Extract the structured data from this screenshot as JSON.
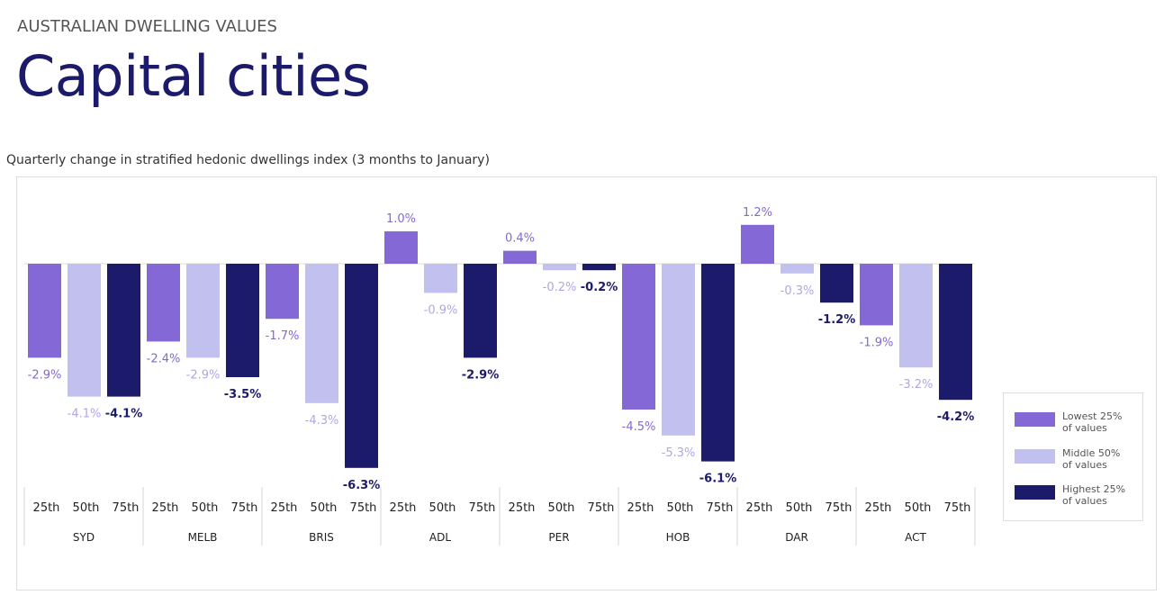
{
  "header": {
    "eyebrow": "AUSTRALIAN DWELLING VALUES",
    "title": "Capital cities"
  },
  "chart_data": {
    "type": "bar",
    "title": "Quarterly change in stratified hedonic dwellings index (3 months to January)",
    "categories": [
      "SYD",
      "MELB",
      "BRIS",
      "ADL",
      "PER",
      "HOB",
      "DAR",
      "ACT"
    ],
    "subcategories": [
      "25th",
      "50th",
      "75th"
    ],
    "series": [
      {
        "name": "Lowest 25% of values",
        "color": "#8468d6",
        "label_color": "#8468d6",
        "values": [
          -2.9,
          -2.4,
          -1.7,
          1.0,
          0.4,
          -4.5,
          1.2,
          -1.9
        ],
        "labels": [
          "-2.9%",
          "-2.4%",
          "-1.7%",
          "1.0%",
          "0.4%",
          "-4.5%",
          "1.2%",
          "-1.9%"
        ]
      },
      {
        "name": "Middle 50% of values",
        "color": "#c2c0ee",
        "label_color": "#b0a6e6",
        "values": [
          -4.1,
          -2.9,
          -4.3,
          -0.9,
          -0.2,
          -5.3,
          -0.3,
          -3.2
        ],
        "labels": [
          "-4.1%",
          "-2.9%",
          "-4.3%",
          "-0.9%",
          "-0.2%",
          "-5.3%",
          "-0.3%",
          "-3.2%"
        ]
      },
      {
        "name": "Highest 25% of values",
        "color": "#1b1a6b",
        "label_color": "#1b1a6b",
        "values": [
          -4.1,
          -3.5,
          -6.3,
          -2.9,
          -0.2,
          -6.1,
          -1.2,
          -4.2
        ],
        "labels": [
          "-4.1%",
          "-3.5%",
          "-6.3%",
          "-2.9%",
          "-0.2%",
          "-6.1%",
          "-1.2%",
          "-4.2%"
        ]
      }
    ],
    "legend_placement": "right",
    "grid": false
  },
  "legend": {
    "items": [
      {
        "line1": "Lowest 25%",
        "line2": "of values"
      },
      {
        "line1": "Middle 50%",
        "line2": "of values"
      },
      {
        "line1": "Highest 25%",
        "line2": "of values"
      }
    ]
  }
}
